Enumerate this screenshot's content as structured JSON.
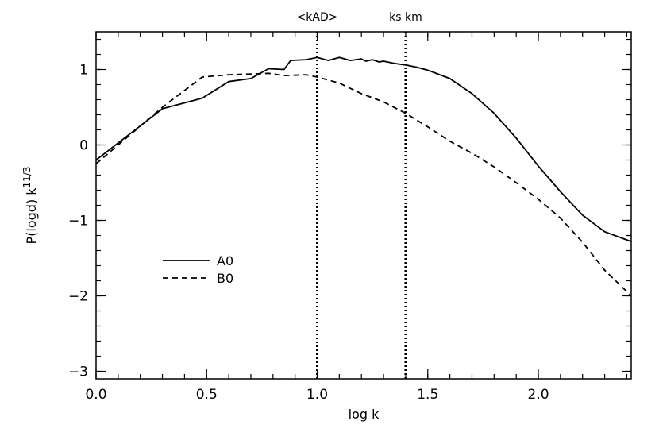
{
  "chart_data": {
    "type": "line",
    "title": "",
    "xlabel": "log k",
    "ylabel": "P(logd)  k",
    "ylabel_superscript": "11/3",
    "xlim": [
      0.0,
      2.42
    ],
    "ylim": [
      -3.1,
      1.5
    ],
    "x_ticks": [
      {
        "value": 0.0,
        "label": "0.0"
      },
      {
        "value": 0.5,
        "label": "0.5"
      },
      {
        "value": 1.0,
        "label": "1.0"
      },
      {
        "value": 1.5,
        "label": "1.5"
      },
      {
        "value": 2.0,
        "label": "2.0"
      }
    ],
    "y_ticks": [
      {
        "value": -3,
        "label": "−3"
      },
      {
        "value": -2,
        "label": "−2"
      },
      {
        "value": -1,
        "label": "−1"
      },
      {
        "value": 0,
        "label": "0"
      },
      {
        "value": 1,
        "label": "1"
      }
    ],
    "x_minor_step": 0.1,
    "y_minor_step": 0.2,
    "grid": false,
    "legend_position": "lower-left",
    "reference_lines": [
      {
        "x": 1.0,
        "label": "<kAD>",
        "style": "dotted"
      },
      {
        "x": 1.4,
        "label": "ks km",
        "style": "dotted"
      }
    ],
    "series": [
      {
        "name": "A0",
        "dash": "solid",
        "x": [
          0.0,
          0.3,
          0.48,
          0.6,
          0.7,
          0.78,
          0.85,
          0.88,
          0.95,
          1.0,
          1.05,
          1.1,
          1.15,
          1.2,
          1.22,
          1.25,
          1.28,
          1.3,
          1.35,
          1.4,
          1.45,
          1.5,
          1.6,
          1.7,
          1.8,
          1.9,
          2.0,
          2.1,
          2.2,
          2.3,
          2.42
        ],
        "y": [
          -0.2,
          0.48,
          0.62,
          0.84,
          0.88,
          1.01,
          1.0,
          1.12,
          1.13,
          1.16,
          1.12,
          1.16,
          1.12,
          1.14,
          1.11,
          1.13,
          1.1,
          1.11,
          1.08,
          1.06,
          1.03,
          0.99,
          0.88,
          0.68,
          0.42,
          0.09,
          -0.28,
          -0.62,
          -0.93,
          -1.15,
          -1.28
        ]
      },
      {
        "name": "B0",
        "dash": "dashed",
        "x": [
          0.0,
          0.3,
          0.48,
          0.6,
          0.7,
          0.78,
          0.85,
          0.95,
          1.0,
          1.1,
          1.2,
          1.3,
          1.4,
          1.5,
          1.6,
          1.7,
          1.8,
          1.9,
          2.0,
          2.1,
          2.2,
          2.3,
          2.42
        ],
        "y": [
          -0.25,
          0.5,
          0.9,
          0.93,
          0.94,
          0.95,
          0.92,
          0.93,
          0.9,
          0.82,
          0.68,
          0.57,
          0.42,
          0.24,
          0.05,
          -0.11,
          -0.29,
          -0.5,
          -0.72,
          -0.97,
          -1.29,
          -1.66,
          -2.0
        ]
      }
    ]
  }
}
